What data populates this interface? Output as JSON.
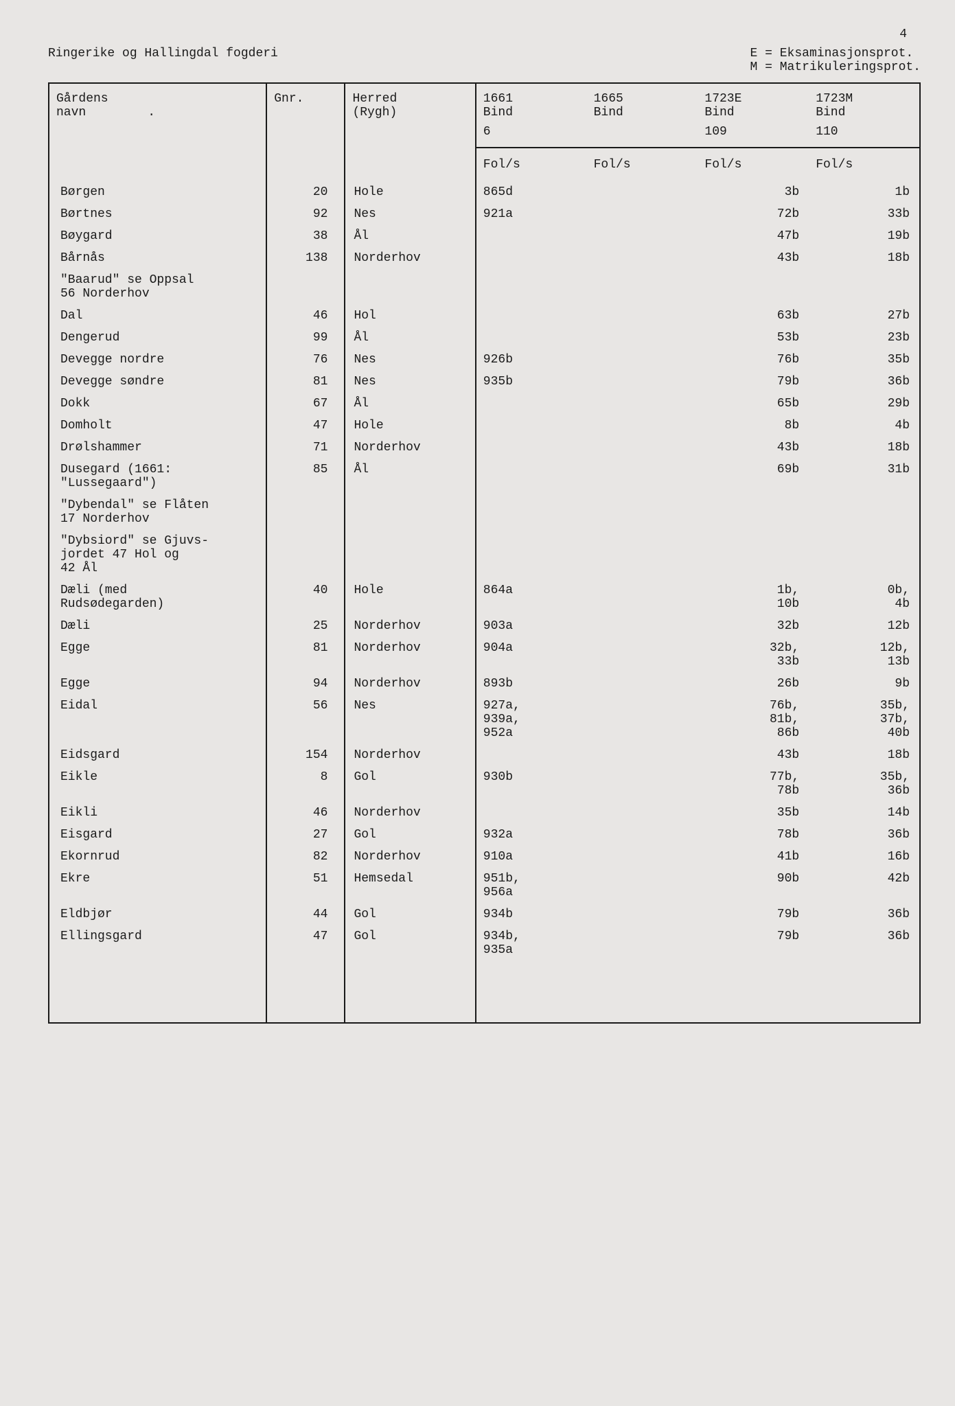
{
  "page_number": "4",
  "title_left": "Ringerike og Hallingdal fogderi",
  "legend_line1": "E = Eksaminasjonsprot.",
  "legend_line2": "M = Matrikuleringsprot.",
  "col_navn_1": "Gårdens",
  "col_navn_2": "navn",
  "col_gnr": "Gnr.",
  "col_herred_1": "Herred",
  "col_herred_2": "(Rygh)",
  "col_1661_1": "1661",
  "col_1661_2": "Bind",
  "col_1661_3": "6",
  "col_1665_1": "1665",
  "col_1665_2": "Bind",
  "col_1723E_1": "1723E",
  "col_1723E_2": "Bind",
  "col_1723E_3": "109",
  "col_1723M_1": "1723M",
  "col_1723M_2": "Bind",
  "col_1723M_3": "110",
  "fols_label": "Fol/s",
  "rows": [
    {
      "navn": "Børgen",
      "gnr": "20",
      "herred": "Hole",
      "v1": "865d",
      "v2": "",
      "v3": "3b",
      "v4": "1b"
    },
    {
      "navn": "Børtnes",
      "gnr": "92",
      "herred": "Nes",
      "v1": "921a",
      "v2": "",
      "v3": "72b",
      "v4": "33b"
    },
    {
      "navn": "Bøygard",
      "gnr": "38",
      "herred": "Ål",
      "v1": "",
      "v2": "",
      "v3": "47b",
      "v4": "19b"
    },
    {
      "navn": "Bårnås",
      "gnr": "138",
      "herred": "Norderhov",
      "v1": "",
      "v2": "",
      "v3": "43b",
      "v4": "18b"
    },
    {
      "navn": "\"Baarud\" se Oppsal\n56 Norderhov",
      "gnr": "",
      "herred": "",
      "v1": "",
      "v2": "",
      "v3": "",
      "v4": ""
    },
    {
      "navn": "Dal",
      "gnr": "46",
      "herred": "Hol",
      "v1": "",
      "v2": "",
      "v3": "63b",
      "v4": "27b"
    },
    {
      "navn": "Dengerud",
      "gnr": "99",
      "herred": "Ål",
      "v1": "",
      "v2": "",
      "v3": "53b",
      "v4": "23b"
    },
    {
      "navn": "Devegge nordre",
      "gnr": "76",
      "herred": "Nes",
      "v1": "926b",
      "v2": "",
      "v3": "76b",
      "v4": "35b"
    },
    {
      "navn": "Devegge søndre",
      "gnr": "81",
      "herred": "Nes",
      "v1": "935b",
      "v2": "",
      "v3": "79b",
      "v4": "36b"
    },
    {
      "navn": "Dokk",
      "gnr": "67",
      "herred": "Ål",
      "v1": "",
      "v2": "",
      "v3": "65b",
      "v4": "29b"
    },
    {
      "navn": "Domholt",
      "gnr": "47",
      "herred": "Hole",
      "v1": "",
      "v2": "",
      "v3": "8b",
      "v4": "4b"
    },
    {
      "navn": "Drølshammer",
      "gnr": "71",
      "herred": "Norderhov",
      "v1": "",
      "v2": "",
      "v3": "43b",
      "v4": "18b"
    },
    {
      "navn": "Dusegard (1661:\n\"Lussegaard\")",
      "gnr": "85",
      "herred": "Ål",
      "v1": "",
      "v2": "",
      "v3": "69b",
      "v4": "31b"
    },
    {
      "navn": "\"Dybendal\" se Flåten\n17 Norderhov",
      "gnr": "",
      "herred": "",
      "v1": "",
      "v2": "",
      "v3": "",
      "v4": ""
    },
    {
      "navn": "\"Dybsiord\" se Gjuvs-\njordet 47 Hol og\n42 Ål",
      "gnr": "",
      "herred": "",
      "v1": "",
      "v2": "",
      "v3": "",
      "v4": ""
    },
    {
      "navn": "Dæli (med\nRudsødegarden)",
      "gnr": "40",
      "herred": "Hole",
      "v1": "864a",
      "v2": "",
      "v3": "1b,\n10b",
      "v4": "0b,\n4b"
    },
    {
      "navn": "Dæli",
      "gnr": "25",
      "herred": "Norderhov",
      "v1": "903a",
      "v2": "",
      "v3": "32b",
      "v4": "12b"
    },
    {
      "navn": "Egge",
      "gnr": "81",
      "herred": "Norderhov",
      "v1": "904a",
      "v2": "",
      "v3": "32b,\n33b",
      "v4": "12b,\n13b"
    },
    {
      "navn": "Egge",
      "gnr": "94",
      "herred": "Norderhov",
      "v1": "893b",
      "v2": "",
      "v3": "26b",
      "v4": "9b"
    },
    {
      "navn": "Eidal",
      "gnr": "56",
      "herred": "Nes",
      "v1": "927a,\n939a,\n952a",
      "v2": "",
      "v3": "76b,\n81b,\n86b",
      "v4": "35b,\n37b,\n40b"
    },
    {
      "navn": "Eidsgard",
      "gnr": "154",
      "herred": "Norderhov",
      "v1": "",
      "v2": "",
      "v3": "43b",
      "v4": "18b"
    },
    {
      "navn": "Eikle",
      "gnr": "8",
      "herred": "Gol",
      "v1": "930b",
      "v2": "",
      "v3": "77b,\n78b",
      "v4": "35b,\n36b"
    },
    {
      "navn": "Eikli",
      "gnr": "46",
      "herred": "Norderhov",
      "v1": "",
      "v2": "",
      "v3": "35b",
      "v4": "14b"
    },
    {
      "navn": "Eisgard",
      "gnr": "27",
      "herred": "Gol",
      "v1": "932a",
      "v2": "",
      "v3": "78b",
      "v4": "36b"
    },
    {
      "navn": "Ekornrud",
      "gnr": "82",
      "herred": "Norderhov",
      "v1": "910a",
      "v2": "",
      "v3": "41b",
      "v4": "16b"
    },
    {
      "navn": "Ekre",
      "gnr": "51",
      "herred": "Hemsedal",
      "v1": "951b,\n956a",
      "v2": "",
      "v3": "90b",
      "v4": "42b"
    },
    {
      "navn": "Eldbjør",
      "gnr": "44",
      "herred": "Gol",
      "v1": "934b",
      "v2": "",
      "v3": "79b",
      "v4": "36b"
    },
    {
      "navn": "Ellingsgard",
      "gnr": "47",
      "herred": "Gol",
      "v1": "934b,\n935a",
      "v2": "",
      "v3": "79b",
      "v4": "36b"
    }
  ]
}
